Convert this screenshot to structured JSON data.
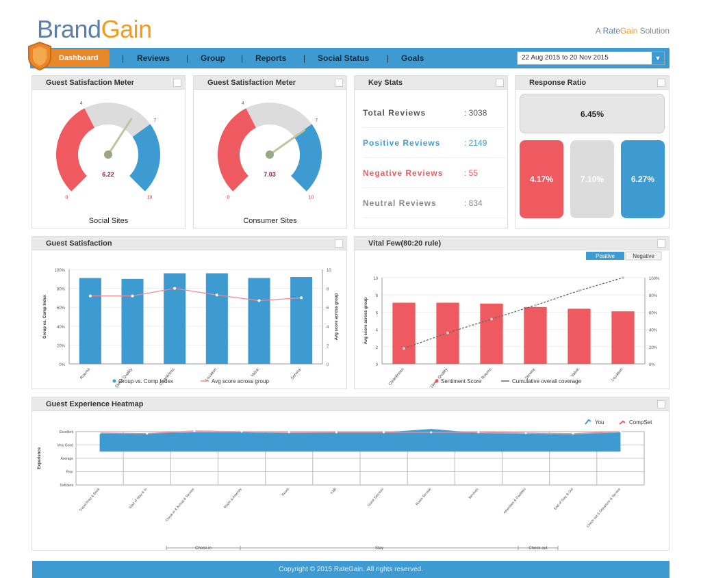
{
  "brand": {
    "logo_part1": "Brand",
    "logo_part2": "Gain",
    "tagline_prefix": "A",
    "tagline_brand1": "Rate",
    "tagline_brand2": "Gain",
    "tagline_suffix": "Solution"
  },
  "nav": {
    "dashboard_label": "Dashboard",
    "items": [
      "Reviews",
      "Group",
      "Reports",
      "Social Status",
      "Goals"
    ],
    "separator": "|",
    "date_range": "22 Aug 2015 to 20 Nov 2015"
  },
  "colors": {
    "red": "#ee5a5f",
    "blue": "#3e9bd1",
    "gray": "#dcdcdc",
    "accent": "#e8862a"
  },
  "gauges": [
    {
      "title": "Guest Satisfaction Meter",
      "label": "Social Sites",
      "value": 6.22,
      "value_text": "6.22",
      "min_label": "0",
      "max_label": "10",
      "left_mark": "4",
      "right_mark": "7"
    },
    {
      "title": "Guest Satisfaction Meter",
      "label": "Consumer Sites",
      "value": 7.03,
      "value_text": "7.03",
      "min_label": "0",
      "max_label": "10",
      "left_mark": "4",
      "right_mark": "7"
    }
  ],
  "key_stats": {
    "title": "Key Stats",
    "rows": [
      {
        "label": "Total Reviews",
        "value": ": 3038",
        "color": "#555555"
      },
      {
        "label": "Positive Reviews",
        "value": ": 2149",
        "color": "#3e9bd1"
      },
      {
        "label": "Negative Reviews",
        "value": ": 55",
        "color": "#ee5a5f"
      },
      {
        "label": "Neutral Reviews",
        "value": ": 834",
        "color": "#888888"
      }
    ]
  },
  "response_ratio": {
    "title": "Response Ratio",
    "overall": "6.45%",
    "negative": "4.17%",
    "neutral": "7.10%",
    "positive": "6.27%"
  },
  "guest_satisfaction": {
    "title": "Guest Satisfaction",
    "chart_data": {
      "type": "bar",
      "categories": [
        "Rooms",
        "Sleep Quality",
        "Cleanliness",
        "Location",
        "Value",
        "Service"
      ],
      "series": [
        {
          "name": "Group vs. Comp Index",
          "type": "bar",
          "values": [
            91,
            90,
            96,
            96,
            91,
            92
          ]
        },
        {
          "name": "Avg score across group",
          "type": "line",
          "values": [
            7.2,
            7.2,
            8.0,
            7.3,
            6.7,
            7.0
          ]
        }
      ],
      "ylabel": "Group vs. Comp Index",
      "y2label": "Avg score across group",
      "ylim": [
        0,
        100
      ],
      "y2lim": [
        0,
        10
      ],
      "yticks": [
        "0%",
        "20%",
        "40%",
        "60%",
        "80%",
        "100%"
      ],
      "y2ticks": [
        "0",
        "2",
        "4",
        "6",
        "8",
        "10"
      ],
      "legend_position": "bottom"
    }
  },
  "vital_few": {
    "title": "Vital Few(80:20 rule)",
    "toggle": [
      "Positive",
      "Negative"
    ],
    "chart_data": {
      "type": "bar",
      "categories": [
        "Cleanliness",
        "Sleep Quality",
        "Rooms",
        "Service",
        "Value",
        "Location"
      ],
      "series": [
        {
          "name": "Sentiment Score",
          "type": "bar",
          "values": [
            7.1,
            7.1,
            7.0,
            6.6,
            6.4,
            6.1
          ]
        },
        {
          "name": "Cumulative overall coverage",
          "type": "line",
          "values": [
            18,
            36,
            52,
            68,
            85,
            100
          ]
        }
      ],
      "ylabel": "Avg score across group",
      "ylim": [
        0,
        10
      ],
      "y2lim": [
        0,
        100
      ],
      "yticks": [
        "0",
        "2",
        "4",
        "6",
        "8",
        "10"
      ],
      "y2ticks": [
        "0%",
        "20%",
        "40%",
        "60%",
        "80%",
        "100%"
      ],
      "legend_position": "bottom"
    }
  },
  "heatmap": {
    "title": "Guest Experience Heatmap",
    "chart_data": {
      "type": "area",
      "categories": [
        "Travel Prep & Book",
        "Start of Stay & In",
        "Check-in & Arrival & Service",
        "Room & Amenity",
        "Room",
        "F&B",
        "Guest Services",
        "Room Service",
        "Services",
        "Amenities & Facilities",
        "End of Stay & Out",
        "Check-out & Departure & Service"
      ],
      "series": [
        {
          "name": "You",
          "values": [
            3.85,
            3.9,
            3.95,
            3.95,
            3.9,
            3.92,
            3.95,
            4.2,
            3.9,
            3.85,
            3.8,
            3.95
          ]
        },
        {
          "name": "CompSet",
          "values": [
            3.9,
            3.85,
            4.05,
            4.0,
            3.95,
            3.95,
            3.95,
            3.95,
            3.95,
            3.9,
            3.85,
            4.0
          ]
        }
      ],
      "ylabel": "Experience",
      "yticks": [
        "Deficient",
        "Poor",
        "Average",
        "Very Good",
        "Excellent"
      ],
      "ylim": [
        0,
        4
      ],
      "legend_position": "top-right",
      "phases": [
        "Check-in",
        "Stay",
        "Check-out"
      ]
    }
  },
  "footer": {
    "text": "Copyright © 2015 RateGain. All rights reserved."
  }
}
